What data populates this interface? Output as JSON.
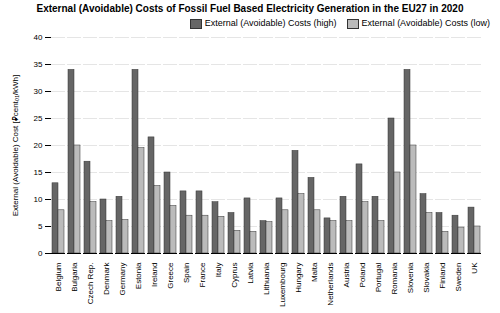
{
  "chart_data": {
    "type": "bar",
    "title": "External (Avoidable) Costs of Fossil Fuel Based Electricity Generation in the EU27 in 2020",
    "ylabel": "External (Avoidable) Cost [⃌cent₀₁/kWh]",
    "categories": [
      "Belgium",
      "Bulgaria",
      "Czech Rep.",
      "Denmark",
      "Germany",
      "Estonia",
      "Ireland",
      "Greece",
      "Spain",
      "France",
      "Italy",
      "Cyprus",
      "Latvia",
      "Lithuania",
      "Luxembourg",
      "Hungary",
      "Malta",
      "Netherlands",
      "Austria",
      "Poland",
      "Portugal",
      "Romania",
      "Slovenia",
      "Slovakia",
      "Finland",
      "Sweden",
      "UK"
    ],
    "series": [
      {
        "name": "External (Avoidable) Costs (high)",
        "color": "#666666",
        "values": [
          13,
          34,
          17,
          10,
          10.5,
          34,
          21.5,
          15,
          11.5,
          11.5,
          9.5,
          7.5,
          10.2,
          6,
          10.2,
          19,
          14,
          6.5,
          10.5,
          16.5,
          10.5,
          25,
          34,
          11,
          7.5,
          7,
          8.5
        ]
      },
      {
        "name": "External (Avoidable) Costs (low)",
        "color": "#bbbbbb",
        "values": [
          8,
          20,
          9.5,
          6,
          6.2,
          19.5,
          12.5,
          8.8,
          7,
          7,
          6.8,
          4.2,
          4,
          5.8,
          8,
          11,
          8,
          6,
          6,
          9.5,
          6,
          15,
          20,
          7.5,
          4,
          4.8,
          5
        ]
      }
    ],
    "ylim": [
      0,
      40
    ],
    "yticks": [
      0,
      5,
      10,
      15,
      20,
      25,
      30,
      35,
      40
    ],
    "grid": true,
    "legend": "upper right"
  }
}
